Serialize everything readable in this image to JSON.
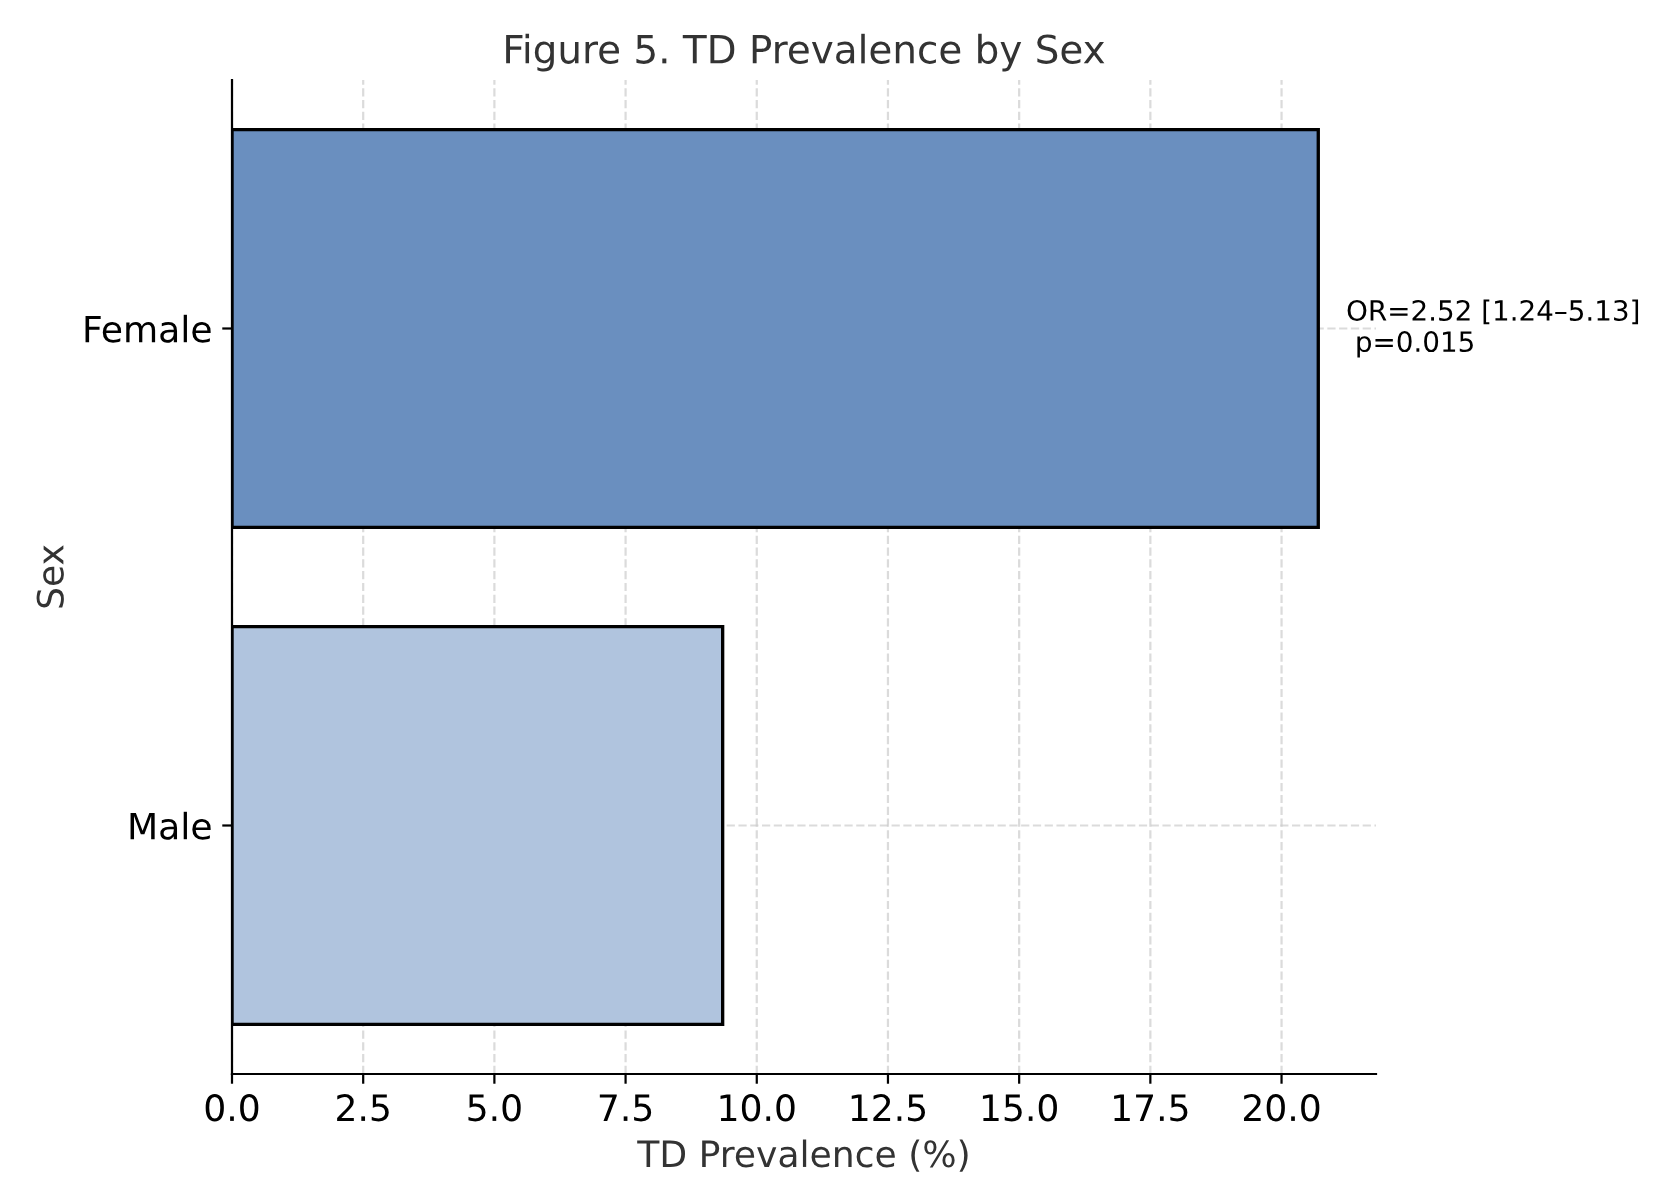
{
  "chart_data": {
    "type": "bar",
    "orientation": "horizontal",
    "title": "Figure 5. TD Prevalence by Sex",
    "xlabel": "TD Prevalence (%)",
    "ylabel": "Sex",
    "categories": [
      "Female",
      "Male"
    ],
    "values": [
      20.7,
      9.35
    ],
    "colors": [
      "#6a8fbf",
      "#b0c4de"
    ],
    "xlim": [
      0,
      21.8
    ],
    "xticks": [
      {
        "value": 0,
        "label": "0.0"
      },
      {
        "value": 2.5,
        "label": "2.5"
      },
      {
        "value": 5,
        "label": "5.0"
      },
      {
        "value": 7.5,
        "label": "7.5"
      },
      {
        "value": 10,
        "label": "10.0"
      },
      {
        "value": 12.5,
        "label": "12.5"
      },
      {
        "value": 15,
        "label": "15.0"
      },
      {
        "value": 17.5,
        "label": "17.5"
      },
      {
        "value": 20,
        "label": "20.0"
      }
    ],
    "grid": true,
    "line_style": "dashed",
    "annotations": [
      "OR=2.52 [1.24–5.13]\n p=0.015"
    ]
  }
}
